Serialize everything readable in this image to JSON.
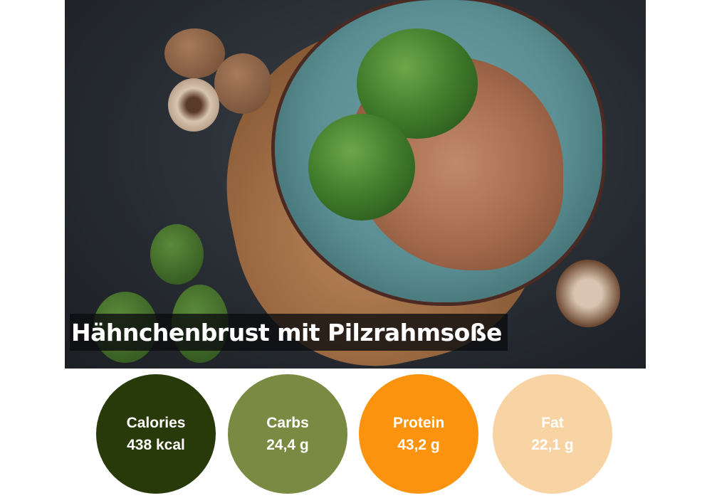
{
  "recipe": {
    "title": "Hähnchenbrust mit Pilzrahmsoße"
  },
  "nutrition": [
    {
      "label": "Calories",
      "value": "438 kcal",
      "color": "#283a09"
    },
    {
      "label": "Carbs",
      "value": "24,4 g",
      "color": "#7b8a43"
    },
    {
      "label": "Protein",
      "value": "43,2 g",
      "color": "#fb930e"
    },
    {
      "label": "Fat",
      "value": "22,1 g",
      "color": "#f8d3a3"
    }
  ]
}
